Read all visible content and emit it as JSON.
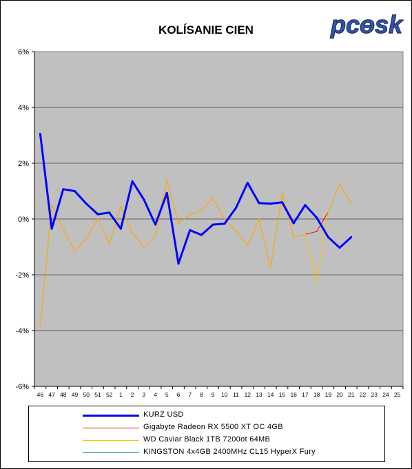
{
  "logo_text": "pcɵsk",
  "chart_data": {
    "type": "line",
    "title": "KOLÍSANIE CIEN",
    "xlabel": "",
    "ylabel": "",
    "ylim": [
      -6,
      6
    ],
    "yticks": [
      -6,
      -4,
      -2,
      0,
      2,
      4,
      6
    ],
    "ytick_labels": [
      "-6%",
      "-4%",
      "-2%",
      "0%",
      "2%",
      "4%",
      "6%"
    ],
    "grid": true,
    "legend_position": "bottom",
    "x": [
      "46",
      "47",
      "48",
      "49",
      "50",
      "51",
      "52",
      "1",
      "2",
      "3",
      "4",
      "5",
      "6",
      "7",
      "8",
      "9",
      "10",
      "11",
      "12",
      "13",
      "14",
      "15",
      "16",
      "17",
      "18",
      "19",
      "20",
      "21",
      "22",
      "23",
      "24",
      "25"
    ],
    "series": [
      {
        "name": "KURZ USD",
        "color": "#0000ff",
        "values": [
          3.05,
          -0.35,
          1.07,
          1.0,
          0.55,
          0.17,
          0.23,
          -0.35,
          1.35,
          0.7,
          -0.2,
          0.93,
          -1.6,
          -0.4,
          -0.57,
          -0.2,
          -0.17,
          0.4,
          1.3,
          0.57,
          0.55,
          0.6,
          -0.15,
          0.5,
          0.05,
          -0.65,
          -1.03,
          -0.65,
          null,
          null,
          null,
          null
        ]
      },
      {
        "name": "Gigabyte Radeon RX 5500 XT OC 4GB",
        "color": "#ff0000",
        "values": [
          -3.85,
          0.5,
          -0.35,
          -1.15,
          -0.7,
          0.0,
          -0.9,
          0.45,
          -0.5,
          -1.03,
          -0.6,
          1.4,
          -0.15,
          0.15,
          0.3,
          0.75,
          0.0,
          -0.43,
          -0.95,
          0.0,
          -1.75,
          0.93,
          -0.65,
          -0.55,
          -0.45,
          0.25,
          1.25,
          0.55,
          null,
          null,
          null,
          null
        ]
      },
      {
        "name": "WD Caviar Black 1TB 7200ot 64MB",
        "color": "#ffc000",
        "values": [
          -3.85,
          0.5,
          -0.35,
          -1.15,
          -0.7,
          0.0,
          -0.9,
          0.45,
          -0.5,
          -1.03,
          -0.6,
          1.4,
          -0.15,
          0.15,
          0.3,
          0.75,
          0.0,
          -0.43,
          -0.95,
          0.0,
          -1.75,
          0.93,
          -0.65,
          -0.55,
          -2.25,
          0.25,
          1.25,
          0.55,
          null,
          null,
          null,
          null
        ]
      },
      {
        "name": "KINGSTON 4x4GB 2400MHz CL15 HyperX Fury",
        "color": "#008080",
        "values": [
          null,
          null,
          null,
          null,
          null,
          null,
          null,
          null,
          null,
          null,
          null,
          null,
          null,
          null,
          null,
          null,
          null,
          null,
          null,
          null,
          null,
          null,
          null,
          null,
          null,
          null,
          null,
          null,
          null,
          null,
          null,
          null
        ]
      }
    ]
  }
}
